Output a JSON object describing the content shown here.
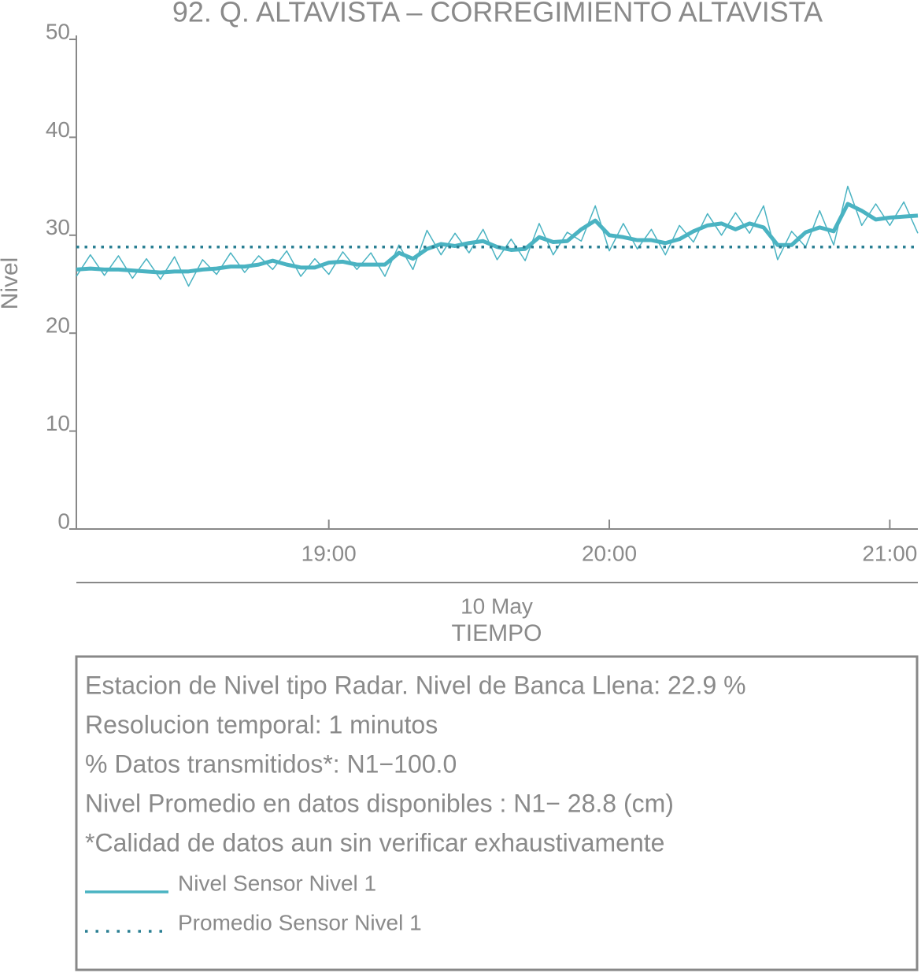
{
  "chart_data": {
    "type": "line",
    "title": "92. Q. ALTAVISTA – CORREGIMIENTO ALTAVISTA",
    "y_label": "Nivel",
    "x_date": "10 May",
    "x_label": "TIEMPO",
    "xlim": [
      "18:06",
      "21:06"
    ],
    "xticks": [
      "19:00",
      "20:00",
      "21:00"
    ],
    "ylim": [
      0,
      50
    ],
    "yticks": [
      0,
      10,
      20,
      30,
      40,
      50
    ],
    "x": [
      "18:06",
      "18:09",
      "18:12",
      "18:15",
      "18:18",
      "18:21",
      "18:24",
      "18:27",
      "18:30",
      "18:33",
      "18:36",
      "18:39",
      "18:42",
      "18:45",
      "18:48",
      "18:51",
      "18:54",
      "18:57",
      "19:00",
      "19:03",
      "19:06",
      "19:09",
      "19:12",
      "19:15",
      "19:18",
      "19:21",
      "19:24",
      "19:27",
      "19:30",
      "19:33",
      "19:36",
      "19:39",
      "19:42",
      "19:45",
      "19:48",
      "19:51",
      "19:54",
      "19:57",
      "20:00",
      "20:03",
      "20:06",
      "20:09",
      "20:12",
      "20:15",
      "20:18",
      "20:21",
      "20:24",
      "20:27",
      "20:30",
      "20:33",
      "20:36",
      "20:39",
      "20:42",
      "20:45",
      "20:48",
      "20:51",
      "20:54",
      "20:57",
      "21:00",
      "21:03",
      "21:06"
    ],
    "series": [
      {
        "name": "Nivel Sensor Nivel 1",
        "color": "#4ab3c2",
        "width": 1.5,
        "values": [
          25.8,
          28.0,
          25.9,
          27.9,
          25.6,
          27.6,
          25.5,
          27.8,
          24.8,
          27.5,
          26.0,
          28.2,
          26.2,
          27.9,
          26.5,
          28.4,
          25.8,
          27.6,
          26.0,
          28.3,
          26.5,
          28.2,
          25.8,
          29.0,
          26.5,
          30.5,
          28.0,
          30.2,
          28.2,
          30.6,
          27.5,
          29.6,
          27.4,
          31.2,
          28.0,
          30.3,
          29.4,
          33.0,
          28.4,
          31.2,
          28.6,
          30.6,
          28.0,
          31.0,
          29.3,
          32.2,
          30.0,
          32.3,
          30.2,
          33.0,
          27.5,
          30.4,
          28.8,
          32.5,
          29.0,
          35.0,
          31.0,
          33.2,
          31.0,
          33.4,
          30.2
        ]
      },
      {
        "name": "Nivel Sensor Nivel 1",
        "color": "#4ab3c2",
        "width": 5,
        "legend": true,
        "values": [
          26.5,
          26.6,
          26.5,
          26.5,
          26.4,
          26.3,
          26.2,
          26.3,
          26.3,
          26.5,
          26.6,
          26.8,
          26.8,
          27.0,
          27.4,
          27.0,
          26.7,
          26.7,
          27.2,
          27.3,
          27.0,
          27.0,
          27.0,
          28.2,
          27.6,
          28.6,
          29.1,
          28.9,
          29.2,
          29.4,
          28.8,
          28.5,
          28.6,
          29.8,
          29.3,
          29.4,
          30.6,
          31.5,
          30.0,
          29.8,
          29.5,
          29.5,
          29.2,
          29.6,
          30.4,
          31.0,
          31.2,
          30.6,
          31.2,
          30.8,
          29.0,
          29.0,
          30.3,
          30.8,
          30.4,
          33.2,
          32.5,
          31.6,
          31.8,
          31.9,
          32.0
        ]
      },
      {
        "name": "Promedio Sensor Nivel 1",
        "color": "#2a7f93",
        "style": "dotted",
        "value": 28.8,
        "legend": true
      }
    ],
    "notes": [
      "Estacion de Nivel tipo Radar. Nivel de Banca Llena: 22.9 %",
      "Resolucion temporal: 1 minutos",
      "% Datos transmitidos*: N1−100.0",
      "Nivel Promedio en datos disponibles : N1− 28.8 (cm)",
      "*Calidad de datos aun sin verificar exhaustivamente"
    ]
  }
}
